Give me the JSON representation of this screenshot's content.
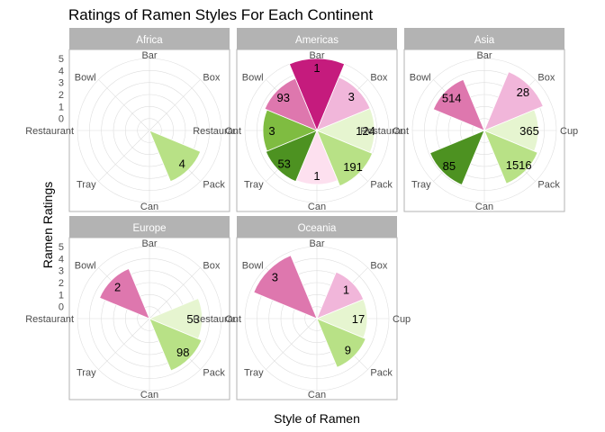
{
  "chart_data": {
    "type": "polar-bar",
    "title": "Ratings of Ramen Styles For Each Continent",
    "xlabel": "Style of Ramen",
    "ylabel": "Ramen Ratings",
    "radial_ticks": [
      "5",
      "4",
      "3",
      "2",
      "1",
      "0"
    ],
    "ylim": [
      -1,
      5
    ],
    "categories": [
      "Bar",
      "Box",
      "Cup",
      "Pack",
      "Can",
      "Tray",
      "Restaurant",
      "Bowl"
    ],
    "category_colors": {
      "Bar": "#c51b7d",
      "Box": "#f1b6da",
      "Cup": "#e6f5d0",
      "Pack": "#b8e186",
      "Can": "#fde0ef",
      "Tray": "#4d9221",
      "Restaurant": "#7fbc41",
      "Bowl": "#de77ae"
    },
    "panels": [
      {
        "name": "Africa",
        "bars": [
          {
            "category": "Pack",
            "value": 3.6,
            "label": "4"
          }
        ]
      },
      {
        "name": "Americas",
        "bars": [
          {
            "category": "Bar",
            "value": 5.0,
            "label": "1"
          },
          {
            "category": "Box",
            "value": 3.8,
            "label": "3"
          },
          {
            "category": "Cup",
            "value": 3.8,
            "label": "124"
          },
          {
            "category": "Pack",
            "value": 4.0,
            "label": "191"
          },
          {
            "category": "Can",
            "value": 3.5,
            "label": "1"
          },
          {
            "category": "Tray",
            "value": 3.6,
            "label": "53"
          },
          {
            "category": "Restaurant",
            "value": 3.5,
            "label": "3"
          },
          {
            "category": "Bowl",
            "value": 3.7,
            "label": "93"
          }
        ]
      },
      {
        "name": "Asia",
        "bars": [
          {
            "category": "Box",
            "value": 4.3,
            "label": "28"
          },
          {
            "category": "Cup",
            "value": 3.5,
            "label": "365"
          },
          {
            "category": "Pack",
            "value": 3.8,
            "label": "1516"
          },
          {
            "category": "Tray",
            "value": 3.9,
            "label": "85"
          },
          {
            "category": "Bowl",
            "value": 3.6,
            "label": "514"
          }
        ]
      },
      {
        "name": "Europe",
        "bars": [
          {
            "category": "Cup",
            "value": 3.4,
            "label": "53"
          },
          {
            "category": "Pack",
            "value": 3.7,
            "label": "98"
          },
          {
            "category": "Bowl",
            "value": 3.5,
            "label": "2"
          }
        ]
      },
      {
        "name": "Oceania",
        "bars": [
          {
            "category": "Box",
            "value": 3.2,
            "label": "1"
          },
          {
            "category": "Cup",
            "value": 3.2,
            "label": "17"
          },
          {
            "category": "Pack",
            "value": 3.4,
            "label": "9"
          },
          {
            "category": "Bowl",
            "value": 4.7,
            "label": "3"
          }
        ]
      }
    ]
  }
}
